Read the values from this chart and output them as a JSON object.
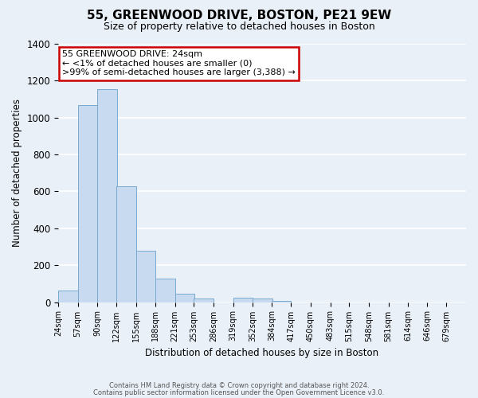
{
  "title": "55, GREENWOOD DRIVE, BOSTON, PE21 9EW",
  "subtitle": "Size of property relative to detached houses in Boston",
  "xlabel": "Distribution of detached houses by size in Boston",
  "ylabel": "Number of detached properties",
  "bar_color": "#c8daf0",
  "bar_edge_color": "#7aaad0",
  "categories": [
    "24sqm",
    "57sqm",
    "90sqm",
    "122sqm",
    "155sqm",
    "188sqm",
    "221sqm",
    "253sqm",
    "286sqm",
    "319sqm",
    "352sqm",
    "384sqm",
    "417sqm",
    "450sqm",
    "483sqm",
    "515sqm",
    "548sqm",
    "581sqm",
    "614sqm",
    "646sqm",
    "679sqm"
  ],
  "values": [
    62,
    1070,
    1155,
    630,
    280,
    128,
    45,
    18,
    0,
    22,
    20,
    8,
    0,
    0,
    0,
    0,
    0,
    0,
    0,
    0,
    0
  ],
  "annotation_title": "55 GREENWOOD DRIVE: 24sqm",
  "annotation_line1": "← <1% of detached houses are smaller (0)",
  "annotation_line2": ">99% of semi-detached houses are larger (3,388) →",
  "ylim": [
    0,
    1400
  ],
  "yticks": [
    0,
    200,
    400,
    600,
    800,
    1000,
    1200,
    1400
  ],
  "footer1": "Contains HM Land Registry data © Crown copyright and database right 2024.",
  "footer2": "Contains public sector information licensed under the Open Government Licence v3.0.",
  "bg_color": "#eaf0f8",
  "plot_bg_color": "#eaf0f8",
  "grid_color": "#ffffff",
  "annotation_box_color": "#cc0000",
  "bin_width": 33
}
